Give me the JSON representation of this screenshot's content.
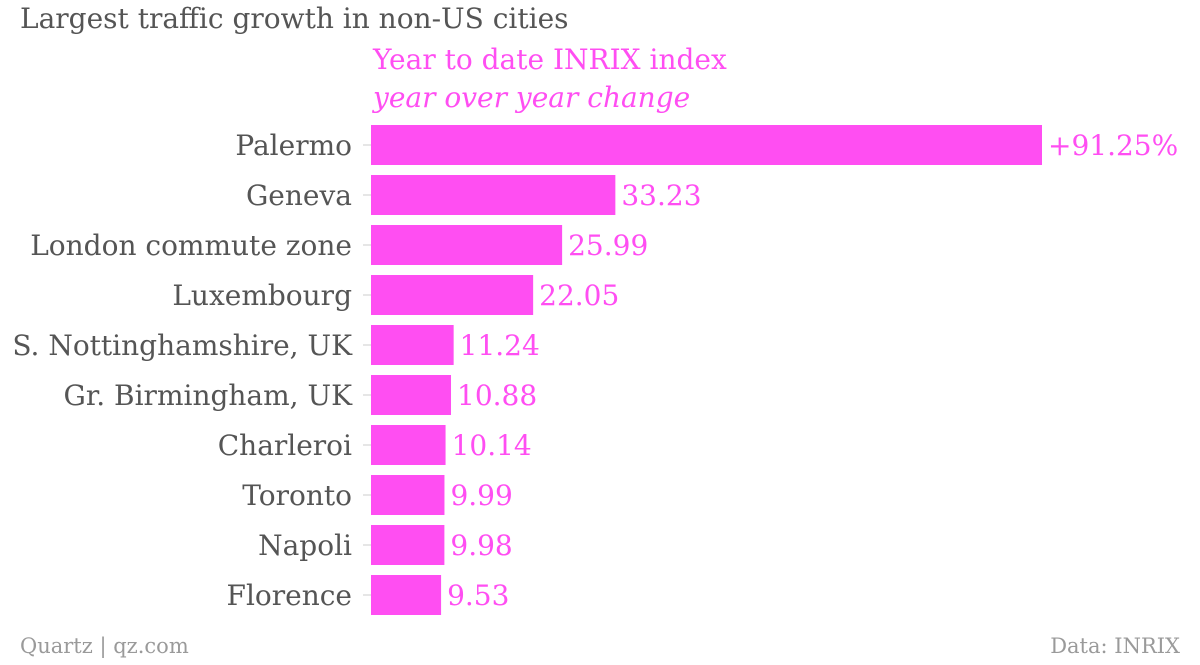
{
  "header": {
    "title": "Largest traffic growth in non-US cities"
  },
  "footer": {
    "source_left": "Quartz | qz.com",
    "source_right": "Data: INRIX"
  },
  "colors": {
    "bar": "#ff4ef2",
    "label": "#ff4ef2",
    "category_text": "#555555",
    "tick": "#cccccc"
  },
  "chart_data": {
    "type": "bar",
    "orientation": "horizontal",
    "series_title": "Year to date INRIX index",
    "series_subtitle": "year over year change",
    "categories": [
      "Palermo",
      "Geneva",
      "London commute zone",
      "Luxembourg",
      "S. Nottinghamshire, UK",
      "Gr. Birmingham, UK",
      "Charleroi",
      "Toronto",
      "Napoli",
      "Florence"
    ],
    "values": [
      91.25,
      33.23,
      25.99,
      22.05,
      11.24,
      10.88,
      10.14,
      9.99,
      9.98,
      9.53
    ],
    "value_labels": [
      "+91.25%",
      "33.23",
      "25.99",
      "22.05",
      "11.24",
      "10.88",
      "10.14",
      "9.99",
      "9.98",
      "9.53"
    ],
    "xlim": [
      0,
      91.25
    ],
    "grid": false,
    "legend": "none"
  }
}
